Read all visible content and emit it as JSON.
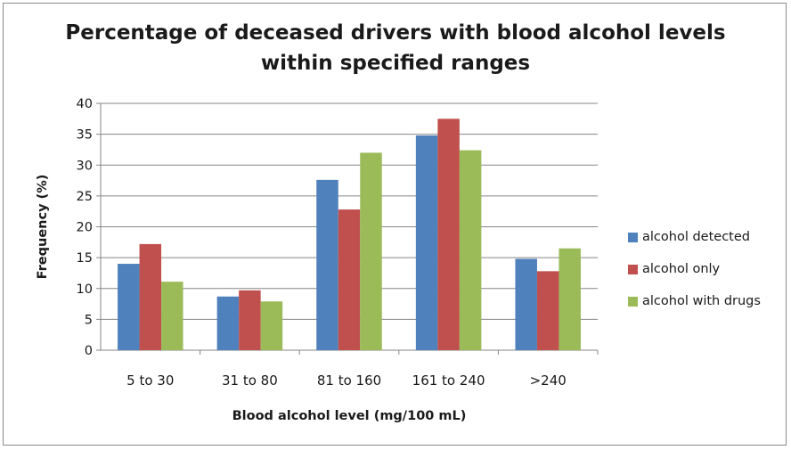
{
  "chart_data": {
    "type": "bar",
    "title": [
      "Percentage of deceased drivers with blood alcohol levels",
      "within specified ranges"
    ],
    "xlabel": "Blood alcohol level (mg/100 mL)",
    "ylabel": "Frequency (%)",
    "ylim": [
      0,
      40
    ],
    "yticks": [
      "0",
      "5",
      "10",
      "15",
      "20",
      "25",
      "30",
      "35",
      "40"
    ],
    "grid": true,
    "legend_position": "right",
    "categories": [
      "5 to 30",
      "31 to 80",
      "81 to 160",
      "161 to 240",
      ">240"
    ],
    "series": [
      {
        "name": "alcohol detected",
        "color": "#4f81bd",
        "values": [
          14.0,
          8.7,
          27.6,
          34.8,
          14.8
        ]
      },
      {
        "name": "alcohol only",
        "color": "#c0504d",
        "values": [
          17.2,
          9.7,
          22.8,
          37.5,
          12.8
        ]
      },
      {
        "name": "alcohol with drugs",
        "color": "#9bbb59",
        "values": [
          11.1,
          7.9,
          32.0,
          32.4,
          16.5
        ]
      }
    ]
  }
}
